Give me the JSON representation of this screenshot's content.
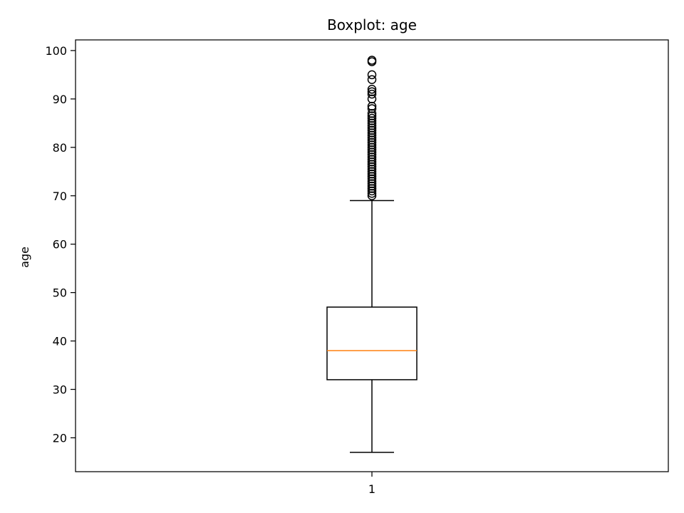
{
  "chart_data": {
    "type": "boxplot",
    "title": "Boxplot: age",
    "xlabel": "",
    "ylabel": "age",
    "ylim": [
      13,
      102.2
    ],
    "y_ticks": [
      20,
      30,
      40,
      50,
      60,
      70,
      80,
      90,
      100
    ],
    "x_tick_labels": [
      "1"
    ],
    "boxes": [
      {
        "label": "1",
        "whisker_low": 17,
        "q1": 32,
        "median": 38,
        "q3": 47,
        "whisker_high": 69,
        "outliers": [
          70,
          70.5,
          71,
          71.5,
          72,
          72.5,
          73,
          73.5,
          74,
          74.5,
          75,
          75.5,
          76,
          76.5,
          77,
          77.5,
          78,
          78.5,
          79,
          79.5,
          80,
          80.5,
          81,
          81.5,
          82,
          82.5,
          83,
          83.5,
          84,
          84.5,
          85,
          85.5,
          86,
          86.5,
          87,
          88,
          88.5,
          90,
          91,
          91.5,
          92,
          94,
          95,
          97.7,
          98
        ]
      }
    ],
    "colors": {
      "box": "#000000",
      "median": "#ff7f0e",
      "outlier": "#000000"
    },
    "grid": false
  }
}
